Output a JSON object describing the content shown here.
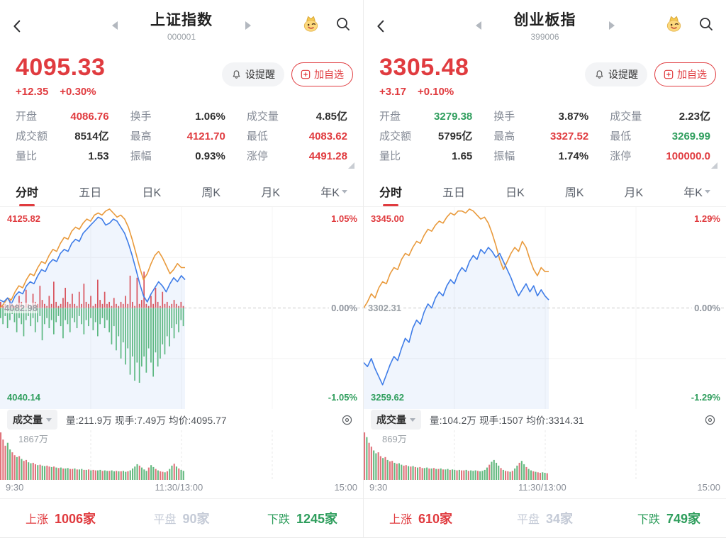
{
  "colors": {
    "red": "#e03b3f",
    "green": "#2f9e5d",
    "blue_line": "#3f7de8",
    "orange_line": "#e99a3c",
    "area_fill": "rgba(63,125,232,0.08)",
    "vol_red": "#e0737b",
    "vol_green": "#63b97f",
    "center_bar_red": "#d8545e",
    "center_bar_green": "#5cb881",
    "flat_gray": "#c5cbd7"
  },
  "panels": [
    {
      "header": {
        "title": "上证指数",
        "code": "000001"
      },
      "price": {
        "value": "4095.33",
        "change": "+12.35",
        "change_pct": "+0.30%"
      },
      "actions": {
        "alert_label": "设提醒",
        "watch_label": "加自选"
      },
      "stats": [
        {
          "label": "开盘",
          "value": "4086.76",
          "color": "red"
        },
        {
          "label": "换手",
          "value": "1.06%",
          "color": "dark"
        },
        {
          "label": "成交量",
          "value": "4.85亿",
          "color": "dark"
        },
        {
          "label": "成交额",
          "value": "8514亿",
          "color": "dark"
        },
        {
          "label": "最高",
          "value": "4121.70",
          "color": "red"
        },
        {
          "label": "最低",
          "value": "4083.62",
          "color": "red"
        },
        {
          "label": "量比",
          "value": "1.53",
          "color": "dark"
        },
        {
          "label": "振幅",
          "value": "0.93%",
          "color": "dark"
        },
        {
          "label": "涨停",
          "value": "4491.28",
          "color": "red"
        }
      ],
      "tabs": [
        {
          "label": "分时",
          "active": true,
          "has_chevron": false
        },
        {
          "label": "五日",
          "active": false,
          "has_chevron": false
        },
        {
          "label": "日K",
          "active": false,
          "has_chevron": false
        },
        {
          "label": "周K",
          "active": false,
          "has_chevron": false
        },
        {
          "label": "月K",
          "active": false,
          "has_chevron": false
        },
        {
          "label": "年K",
          "active": false,
          "has_chevron": true
        }
      ],
      "chart": {
        "y_top": "4125.82",
        "y_mid": "4082.98",
        "y_bottom": "4040.14",
        "pct_top": "1.05%",
        "pct_mid": "0.00%",
        "pct_bottom": "-1.05%",
        "blue": [
          46,
          47,
          45,
          48,
          44,
          42,
          43,
          39,
          37,
          38,
          34,
          31,
          32,
          28,
          26,
          27,
          23,
          21,
          22,
          18,
          16,
          17,
          13,
          11,
          9,
          7,
          5,
          6,
          9,
          8,
          6,
          7,
          10,
          13,
          18,
          24,
          31,
          38,
          44,
          47,
          43,
          40,
          37,
          39,
          42,
          38,
          35,
          37,
          34,
          36
        ],
        "orange": [
          50,
          48,
          45,
          46,
          42,
          39,
          40,
          36,
          33,
          34,
          30,
          27,
          28,
          24,
          21,
          22,
          18,
          15,
          16,
          12,
          10,
          11,
          8,
          6,
          7,
          4,
          3,
          4,
          2,
          1,
          3,
          5,
          4,
          6,
          10,
          16,
          23,
          30,
          36,
          33,
          28,
          24,
          22,
          25,
          29,
          33,
          31,
          28,
          30,
          30
        ],
        "bars_up": [
          3,
          1,
          2,
          1,
          4,
          2,
          1,
          2,
          6,
          3,
          1,
          9,
          2,
          1,
          7,
          3,
          2,
          11,
          4,
          2,
          1,
          6,
          2,
          13,
          3,
          1,
          2,
          5,
          10,
          3,
          2,
          7,
          2,
          1,
          8,
          2,
          12,
          3,
          2,
          6,
          1,
          2,
          14,
          4,
          2,
          8,
          2,
          3,
          1,
          5,
          2,
          1,
          3,
          2,
          6,
          2,
          16,
          3,
          1,
          15,
          2,
          4,
          18,
          2,
          1,
          6,
          2,
          10,
          3,
          1,
          8,
          2,
          3,
          1,
          2,
          4,
          2,
          1,
          3,
          1
        ],
        "bars_down": [
          5,
          8,
          4,
          10,
          6,
          3,
          7,
          12,
          5,
          8,
          14,
          6,
          4,
          9,
          5,
          12,
          7,
          4,
          16,
          8,
          5,
          10,
          6,
          13,
          7,
          4,
          9,
          15,
          6,
          8,
          12,
          5,
          7,
          10,
          4,
          8,
          13,
          6,
          9,
          5,
          11,
          7,
          14,
          8,
          5,
          10,
          6,
          12,
          18,
          9,
          21,
          14,
          25,
          17,
          28,
          20,
          33,
          24,
          36,
          27,
          37,
          29,
          24,
          32,
          20,
          27,
          34,
          22,
          29,
          25,
          18,
          23,
          14,
          19,
          10,
          15,
          8,
          12,
          6,
          9
        ]
      },
      "volume": {
        "selector": "成交量",
        "stats": "量:211.9万 现手:7.49万 均价:4095.77",
        "max_label": "1867万",
        "heights": [
          100,
          85,
          72,
          78,
          64,
          58,
          52,
          48,
          50,
          44,
          40,
          42,
          37,
          35,
          36,
          33,
          31,
          32,
          30,
          29,
          30,
          28,
          27,
          28,
          26,
          25,
          26,
          24,
          24,
          25,
          23,
          23,
          24,
          22,
          22,
          23,
          21,
          21,
          22,
          20,
          21,
          20,
          20,
          21,
          19,
          20,
          19,
          19,
          20,
          18,
          19,
          18,
          18,
          19,
          17,
          18,
          20,
          24,
          28,
          33,
          30,
          26,
          22,
          19,
          26,
          31,
          27,
          23,
          20,
          18,
          17,
          16,
          18,
          23,
          30,
          34,
          28,
          24,
          21,
          19
        ],
        "bar_colors": "rrrggrrgrgrrggrrgrggrrgrgrgrggrrgrggrgrgrrggrggrggrgrggrggggrgggrggrgrrgrggrgrgg",
        "x_labels": [
          "9:30",
          "11:30/13:00",
          "15:00"
        ]
      },
      "breadth": {
        "up_label": "上涨",
        "up_value": "1006家",
        "flat_label": "平盘",
        "flat_value": "90家",
        "down_label": "下跌",
        "down_value": "1245家"
      }
    },
    {
      "header": {
        "title": "创业板指",
        "code": "399006"
      },
      "price": {
        "value": "3305.48",
        "change": "+3.17",
        "change_pct": "+0.10%"
      },
      "actions": {
        "alert_label": "设提醒",
        "watch_label": "加自选"
      },
      "stats": [
        {
          "label": "开盘",
          "value": "3279.38",
          "color": "green"
        },
        {
          "label": "换手",
          "value": "3.87%",
          "color": "dark"
        },
        {
          "label": "成交量",
          "value": "2.23亿",
          "color": "dark"
        },
        {
          "label": "成交额",
          "value": "5795亿",
          "color": "dark"
        },
        {
          "label": "最高",
          "value": "3327.52",
          "color": "red"
        },
        {
          "label": "最低",
          "value": "3269.99",
          "color": "green"
        },
        {
          "label": "量比",
          "value": "1.65",
          "color": "dark"
        },
        {
          "label": "振幅",
          "value": "1.74%",
          "color": "dark"
        },
        {
          "label": "涨停",
          "value": "100000.0",
          "color": "red"
        }
      ],
      "tabs": [
        {
          "label": "分时",
          "active": true,
          "has_chevron": false
        },
        {
          "label": "五日",
          "active": false,
          "has_chevron": false
        },
        {
          "label": "日K",
          "active": false,
          "has_chevron": false
        },
        {
          "label": "周K",
          "active": false,
          "has_chevron": false
        },
        {
          "label": "月K",
          "active": false,
          "has_chevron": false
        },
        {
          "label": "年K",
          "active": false,
          "has_chevron": true
        }
      ],
      "chart": {
        "y_top": "3345.00",
        "y_mid": "3302.31",
        "y_bottom": "3259.62",
        "pct_top": "1.29%",
        "pct_mid": "0.00%",
        "pct_bottom": "-1.29%",
        "blue": [
          77,
          79,
          75,
          80,
          84,
          88,
          83,
          78,
          74,
          76,
          70,
          65,
          67,
          60,
          56,
          58,
          52,
          48,
          50,
          45,
          42,
          44,
          39,
          36,
          38,
          33,
          30,
          32,
          27,
          24,
          26,
          21,
          23,
          20,
          22,
          25,
          23,
          27,
          31,
          35,
          40,
          44,
          41,
          38,
          42,
          39,
          44,
          41,
          44,
          46
        ],
        "orange": [
          50,
          47,
          43,
          45,
          40,
          37,
          38,
          33,
          30,
          31,
          26,
          23,
          24,
          20,
          17,
          18,
          14,
          11,
          12,
          9,
          7,
          8,
          5,
          3,
          4,
          2,
          2,
          3,
          1,
          2,
          4,
          6,
          5,
          8,
          13,
          19,
          26,
          31,
          27,
          23,
          20,
          22,
          17,
          20,
          26,
          31,
          34,
          30,
          32,
          32
        ],
        "bars_up": [],
        "bars_down": []
      },
      "volume": {
        "selector": "成交量",
        "stats": "量:104.2万 现手:1507 均价:3314.31",
        "max_label": "869万",
        "heights": [
          100,
          90,
          78,
          70,
          62,
          56,
          58,
          50,
          46,
          48,
          42,
          39,
          40,
          36,
          34,
          35,
          32,
          30,
          31,
          29,
          28,
          29,
          27,
          26,
          27,
          25,
          25,
          26,
          24,
          24,
          25,
          23,
          23,
          24,
          22,
          22,
          23,
          21,
          22,
          21,
          20,
          21,
          20,
          20,
          21,
          19,
          20,
          19,
          20,
          19,
          18,
          19,
          21,
          26,
          32,
          38,
          42,
          36,
          30,
          25,
          21,
          19,
          18,
          17,
          19,
          24,
          30,
          36,
          40,
          33,
          27,
          23,
          20,
          18,
          17,
          16,
          15,
          16,
          15,
          14
        ],
        "bar_colors": "rgrrggrrgrgrrgrggrrgrgrgrrggrgrgrgrggrggrgrrgrgggrggggrggggrgrrgrggrggrggrgrrgg",
        "x_labels": [
          "9:30",
          "11:30/13:00",
          "15:00"
        ]
      },
      "breadth": {
        "up_label": "上涨",
        "up_value": "610家",
        "flat_label": "平盘",
        "flat_value": "34家",
        "down_label": "下跌",
        "down_value": "749家"
      }
    }
  ]
}
